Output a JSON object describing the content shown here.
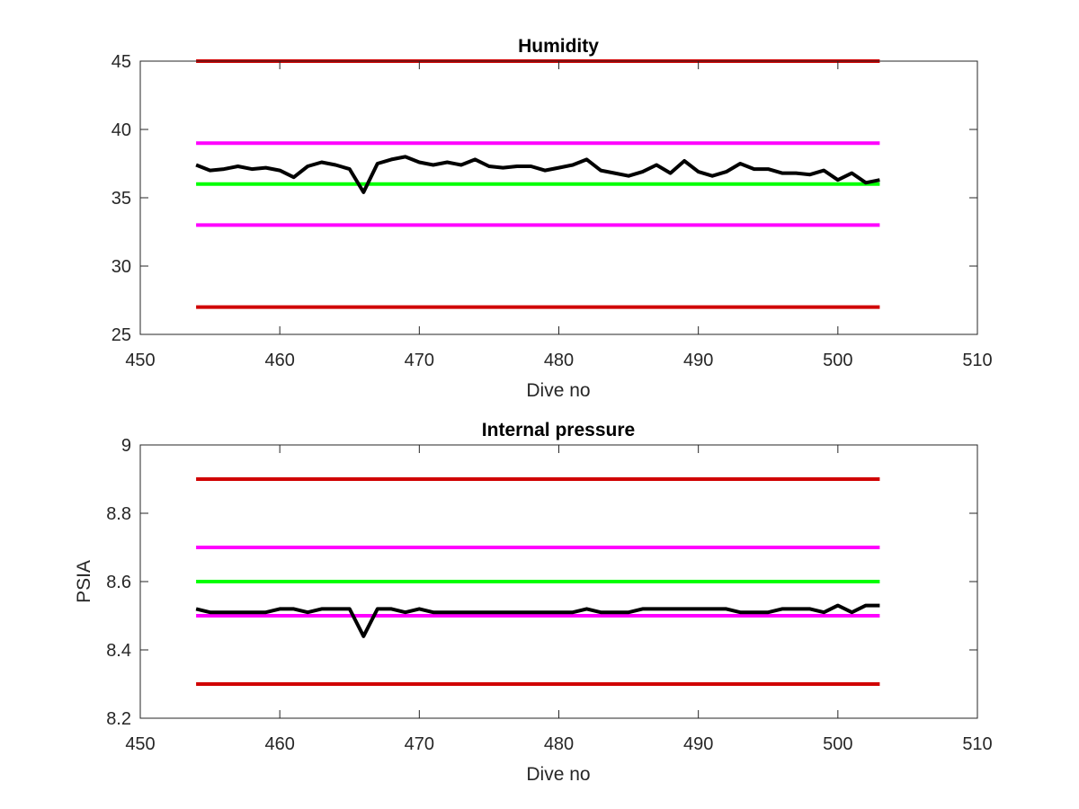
{
  "chart_data": [
    {
      "type": "line",
      "title": "Humidity",
      "xlabel": "Dive no",
      "ylabel": "",
      "xlim": [
        450,
        510
      ],
      "ylim": [
        25,
        45
      ],
      "xticks": [
        450,
        460,
        470,
        480,
        490,
        500,
        510
      ],
      "yticks": [
        25,
        30,
        35,
        40,
        45
      ],
      "grid": false,
      "legend": "none",
      "series": [
        {
          "color": "#000000",
          "x": [
            454,
            455,
            456,
            457,
            458,
            459,
            460,
            461,
            462,
            463,
            464,
            465,
            466,
            467,
            468,
            469,
            470,
            471,
            472,
            473,
            474,
            475,
            476,
            477,
            478,
            479,
            480,
            481,
            482,
            483,
            484,
            485,
            486,
            487,
            488,
            489,
            490,
            491,
            492,
            493,
            494,
            495,
            496,
            497,
            498,
            499,
            500,
            501,
            502,
            503
          ],
          "y": [
            37.4,
            37.0,
            37.1,
            37.3,
            37.1,
            37.2,
            37.0,
            36.5,
            37.3,
            37.6,
            37.4,
            37.1,
            35.4,
            37.5,
            37.8,
            38.0,
            37.6,
            37.4,
            37.6,
            37.4,
            37.8,
            37.3,
            37.2,
            37.3,
            37.3,
            37.0,
            37.2,
            37.4,
            37.8,
            37.0,
            36.8,
            36.6,
            36.9,
            37.4,
            36.8,
            37.7,
            36.9,
            36.6,
            36.9,
            37.5,
            37.1,
            37.1,
            36.8,
            36.8,
            36.7,
            37.0,
            36.3,
            36.8,
            36.1,
            36.3
          ]
        },
        {
          "color": "#d00000",
          "x": [
            454,
            503
          ],
          "y": [
            45,
            45
          ]
        },
        {
          "color": "#ff00ff",
          "x": [
            454,
            503
          ],
          "y": [
            39,
            39
          ]
        },
        {
          "color": "#00ff00",
          "x": [
            454,
            503
          ],
          "y": [
            36,
            36
          ]
        },
        {
          "color": "#ff00ff",
          "x": [
            454,
            503
          ],
          "y": [
            33,
            33
          ]
        },
        {
          "color": "#d00000",
          "x": [
            454,
            503
          ],
          "y": [
            27,
            27
          ]
        }
      ]
    },
    {
      "type": "line",
      "title": "Internal pressure",
      "xlabel": "Dive no",
      "ylabel": "PSIA",
      "xlim": [
        450,
        510
      ],
      "ylim": [
        8.2,
        9
      ],
      "xticks": [
        450,
        460,
        470,
        480,
        490,
        500,
        510
      ],
      "yticks": [
        8.2,
        8.4,
        8.6,
        8.8,
        9
      ],
      "grid": false,
      "legend": "none",
      "series": [
        {
          "color": "#000000",
          "x": [
            454,
            455,
            456,
            457,
            458,
            459,
            460,
            461,
            462,
            463,
            464,
            465,
            466,
            467,
            468,
            469,
            470,
            471,
            472,
            473,
            474,
            475,
            476,
            477,
            478,
            479,
            480,
            481,
            482,
            483,
            484,
            485,
            486,
            487,
            488,
            489,
            490,
            491,
            492,
            493,
            494,
            495,
            496,
            497,
            498,
            499,
            500,
            501,
            502,
            503
          ],
          "y": [
            8.52,
            8.51,
            8.51,
            8.51,
            8.51,
            8.51,
            8.52,
            8.52,
            8.51,
            8.52,
            8.52,
            8.52,
            8.44,
            8.52,
            8.52,
            8.51,
            8.52,
            8.51,
            8.51,
            8.51,
            8.51,
            8.51,
            8.51,
            8.51,
            8.51,
            8.51,
            8.51,
            8.51,
            8.52,
            8.51,
            8.51,
            8.51,
            8.52,
            8.52,
            8.52,
            8.52,
            8.52,
            8.52,
            8.52,
            8.51,
            8.51,
            8.51,
            8.52,
            8.52,
            8.52,
            8.51,
            8.53,
            8.51,
            8.53,
            8.53
          ]
        },
        {
          "color": "#d00000",
          "x": [
            454,
            503
          ],
          "y": [
            8.9,
            8.9
          ]
        },
        {
          "color": "#ff00ff",
          "x": [
            454,
            503
          ],
          "y": [
            8.7,
            8.7
          ]
        },
        {
          "color": "#00ff00",
          "x": [
            454,
            503
          ],
          "y": [
            8.6,
            8.6
          ]
        },
        {
          "color": "#ff00ff",
          "x": [
            454,
            503
          ],
          "y": [
            8.5,
            8.5
          ]
        },
        {
          "color": "#d00000",
          "x": [
            454,
            503
          ],
          "y": [
            8.3,
            8.3
          ]
        }
      ]
    }
  ]
}
